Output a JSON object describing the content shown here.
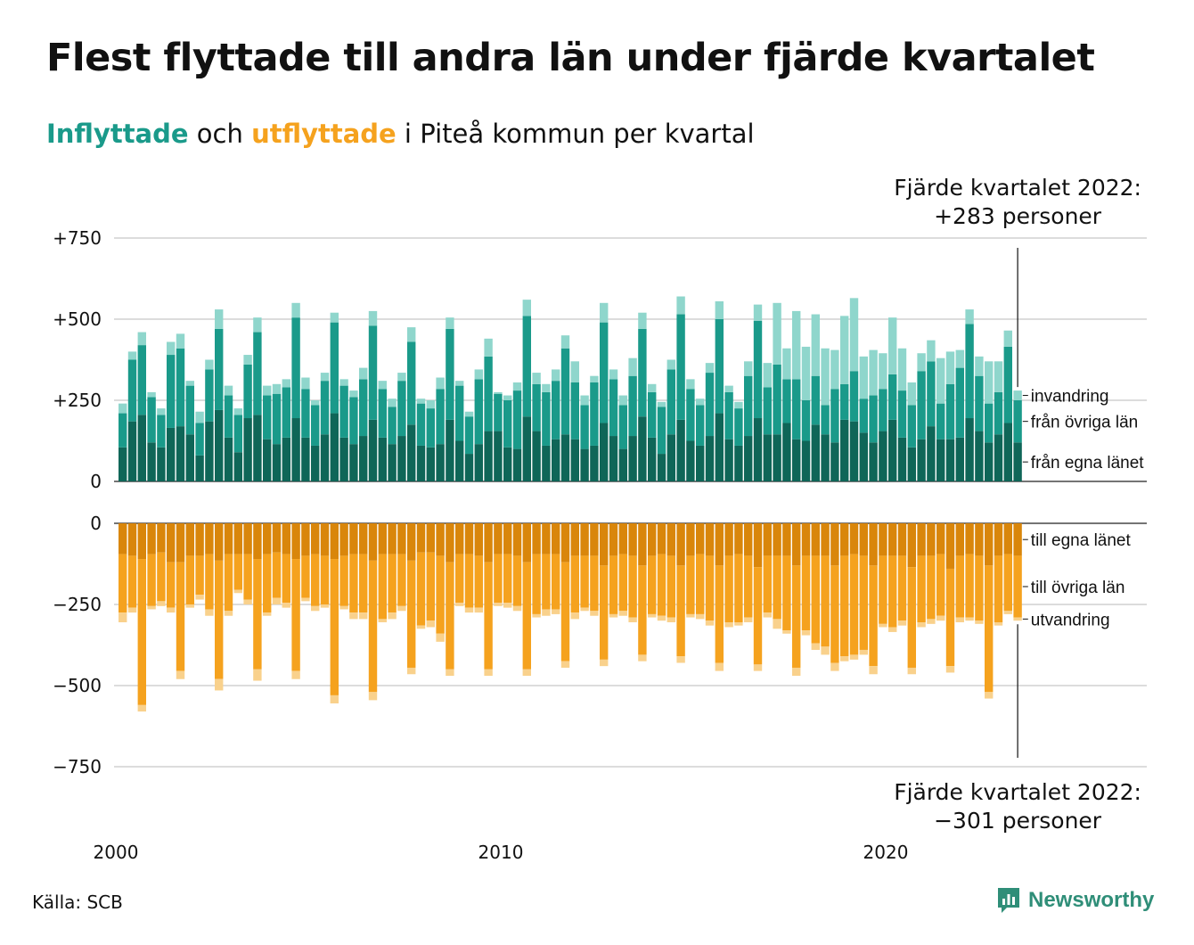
{
  "title": "Flest flyttade till andra län under fjärde kvartalet",
  "subtitle": {
    "in_word": "Inflyttade",
    "middle": " och ",
    "out_word": "utflyttade",
    "rest": " i Piteå kommun per kvartal"
  },
  "source": "Källa: SCB",
  "brand": "Newsworthy",
  "colors": {
    "in_dark": "#0f6658",
    "in_mid": "#1a9a8a",
    "in_light": "#8fd6cc",
    "out_dark": "#d9860b",
    "out_mid": "#f5a21e",
    "out_light": "#f9d18c"
  },
  "chart_data": {
    "type": "bar",
    "stacked": true,
    "x_start": "2000 Q1",
    "x_ticks": [
      "2000",
      "2010",
      "2020"
    ],
    "panels": [
      {
        "name": "Inflyttade",
        "y_ticks": [
          "+750",
          "+500",
          "+250",
          "0"
        ],
        "y_tick_values": [
          750,
          500,
          250,
          0
        ],
        "ylim": [
          0,
          750
        ],
        "series": [
          {
            "name": "från egna länet",
            "values": [
              105,
              185,
              205,
              120,
              105,
              165,
              170,
              145,
              80,
              185,
              220,
              135,
              90,
              195,
              205,
              130,
              115,
              135,
              195,
              135,
              110,
              145,
              210,
              135,
              115,
              140,
              190,
              135,
              115,
              140,
              175,
              110,
              105,
              115,
              190,
              125,
              85,
              115,
              155,
              155,
              105,
              100,
              200,
              155,
              110,
              130,
              145,
              130,
              100,
              110,
              180,
              140,
              100,
              140,
              200,
              135,
              85,
              145,
              190,
              125,
              110,
              140,
              210,
              130,
              110,
              140,
              195,
              145,
              145,
              180,
              130,
              125,
              175,
              145,
              120,
              190,
              185,
              150,
              120,
              155,
              190,
              135,
              105,
              130,
              170,
              130,
              130,
              135,
              195,
              155,
              120,
              145,
              180,
              120
            ]
          },
          {
            "name": "från övriga län",
            "values": [
              105,
              190,
              215,
              140,
              100,
              225,
              240,
              150,
              100,
              160,
              250,
              130,
              115,
              165,
              255,
              135,
              155,
              155,
              310,
              150,
              125,
              165,
              280,
              160,
              145,
              175,
              290,
              150,
              115,
              170,
              255,
              130,
              120,
              170,
              280,
              170,
              115,
              200,
              230,
              115,
              145,
              180,
              310,
              145,
              165,
              180,
              265,
              175,
              135,
              195,
              310,
              175,
              135,
              185,
              270,
              140,
              145,
              200,
              325,
              160,
              125,
              195,
              290,
              145,
              115,
              185,
              300,
              145,
              215,
              135,
              185,
              125,
              150,
              90,
              165,
              110,
              155,
              105,
              145,
              130,
              140,
              145,
              130,
              210,
              200,
              110,
              170,
              215,
              290,
              170,
              120,
              130,
              235,
              130
            ]
          },
          {
            "name": "invandring",
            "values": [
              30,
              25,
              40,
              15,
              20,
              40,
              45,
              15,
              35,
              30,
              60,
              30,
              20,
              30,
              45,
              30,
              30,
              25,
              45,
              35,
              15,
              25,
              30,
              20,
              20,
              35,
              45,
              25,
              25,
              25,
              45,
              15,
              25,
              35,
              35,
              15,
              15,
              30,
              55,
              5,
              15,
              25,
              50,
              35,
              25,
              35,
              40,
              65,
              30,
              20,
              60,
              30,
              30,
              55,
              50,
              25,
              15,
              30,
              55,
              30,
              20,
              30,
              55,
              20,
              20,
              45,
              50,
              75,
              190,
              95,
              210,
              165,
              190,
              175,
              120,
              210,
              225,
              130,
              140,
              110,
              175,
              130,
              70,
              55,
              65,
              140,
              100,
              55,
              45,
              60,
              130,
              95,
              50,
              30
            ]
          }
        ]
      },
      {
        "name": "Utflyttade",
        "y_ticks": [
          "0",
          "−250",
          "−500",
          "−750"
        ],
        "y_tick_values": [
          0,
          -250,
          -500,
          -750
        ],
        "ylim": [
          -750,
          0
        ],
        "series": [
          {
            "name": "till egna länet",
            "values": [
              -95,
              -100,
              -110,
              -95,
              -90,
              -120,
              -120,
              -100,
              -100,
              -95,
              -115,
              -95,
              -95,
              -95,
              -110,
              -95,
              -90,
              -95,
              -110,
              -100,
              -95,
              -100,
              -110,
              -100,
              -95,
              -95,
              -115,
              -95,
              -95,
              -95,
              -115,
              -90,
              -90,
              -100,
              -120,
              -95,
              -95,
              -100,
              -120,
              -95,
              -95,
              -100,
              -120,
              -95,
              -95,
              -95,
              -120,
              -100,
              -100,
              -100,
              -130,
              -100,
              -95,
              -100,
              -130,
              -100,
              -95,
              -100,
              -130,
              -100,
              -95,
              -100,
              -130,
              -100,
              -95,
              -100,
              -135,
              -100,
              -100,
              -100,
              -130,
              -100,
              -100,
              -100,
              -130,
              -100,
              -95,
              -100,
              -130,
              -100,
              -100,
              -100,
              -135,
              -100,
              -100,
              -95,
              -140,
              -100,
              -95,
              -100,
              -130,
              -100,
              -95,
              -100
            ]
          },
          {
            "name": "till övriga län",
            "values": [
              -180,
              -160,
              -450,
              -160,
              -150,
              -140,
              -335,
              -150,
              -120,
              -170,
              -365,
              -175,
              -110,
              -140,
              -340,
              -180,
              -140,
              -150,
              -345,
              -130,
              -160,
              -150,
              -420,
              -155,
              -180,
              -180,
              -405,
              -200,
              -180,
              -160,
              -330,
              -225,
              -210,
              -240,
              -330,
              -150,
              -165,
              -160,
              -330,
              -150,
              -150,
              -155,
              -330,
              -185,
              -170,
              -170,
              -305,
              -175,
              -160,
              -170,
              -290,
              -180,
              -175,
              -190,
              -275,
              -180,
              -190,
              -190,
              -280,
              -180,
              -185,
              -200,
              -300,
              -205,
              -210,
              -190,
              -300,
              -175,
              -195,
              -230,
              -315,
              -230,
              -270,
              -280,
              -300,
              -310,
              -310,
              -290,
              -310,
              -210,
              -220,
              -200,
              -310,
              -205,
              -195,
              -190,
              -300,
              -190,
              -195,
              -200,
              -390,
              -205,
              -175,
              -190
            ]
          },
          {
            "name": "utvandring",
            "values": [
              -30,
              -15,
              -20,
              -10,
              -15,
              -15,
              -25,
              -10,
              -15,
              -20,
              -35,
              -15,
              -10,
              -15,
              -35,
              -10,
              -20,
              -15,
              -25,
              -10,
              -15,
              -10,
              -25,
              -10,
              -20,
              -20,
              -25,
              -10,
              -20,
              -15,
              -20,
              -10,
              -20,
              -25,
              -20,
              -10,
              -15,
              -15,
              -20,
              -10,
              -15,
              -15,
              -20,
              -10,
              -20,
              -15,
              -20,
              -20,
              -10,
              -15,
              -20,
              -10,
              -15,
              -15,
              -20,
              -10,
              -15,
              -15,
              -20,
              -10,
              -15,
              -15,
              -25,
              -15,
              -10,
              -15,
              -20,
              -15,
              -30,
              -10,
              -25,
              -15,
              -20,
              -25,
              -25,
              -15,
              -15,
              -15,
              -25,
              -10,
              -15,
              -15,
              -20,
              -15,
              -15,
              -15,
              -20,
              -15,
              -10,
              -10,
              -20,
              -10,
              -10,
              -10
            ]
          }
        ]
      }
    ],
    "segment_labels_top": [
      "invandring",
      "från övriga län",
      "från egna länet"
    ],
    "segment_labels_bottom": [
      "till egna länet",
      "till övriga län",
      "utvandring"
    ],
    "annotations": {
      "top": [
        "Fjärde kvartalet 2022:",
        "+283 personer"
      ],
      "bottom": [
        "Fjärde kvartalet 2022:",
        "−301 personer"
      ]
    },
    "grid": true,
    "legend": "none"
  }
}
